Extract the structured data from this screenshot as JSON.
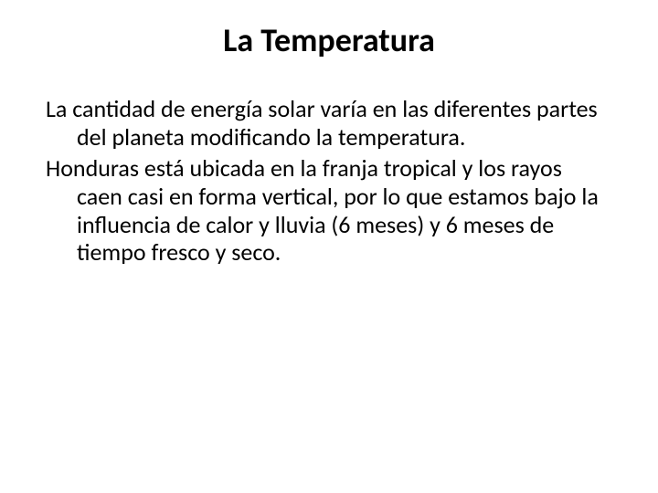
{
  "slide": {
    "title": "La Temperatura",
    "paragraph1": "La cantidad de energía solar varía en las diferentes partes del planeta modificando  la temperatura.",
    "paragraph2": "Honduras está ubicada en la franja tropical y los rayos caen casi en forma vertical, por lo que estamos bajo la influencia de calor y lluvia (6 meses) y 6 meses de tiempo fresco y seco.",
    "title_fontsize": 36,
    "body_fontsize": 26,
    "title_weight": 700,
    "body_weight": 400,
    "text_color": "#000000",
    "background_color": "#ffffff",
    "font_family": "Calibri"
  }
}
